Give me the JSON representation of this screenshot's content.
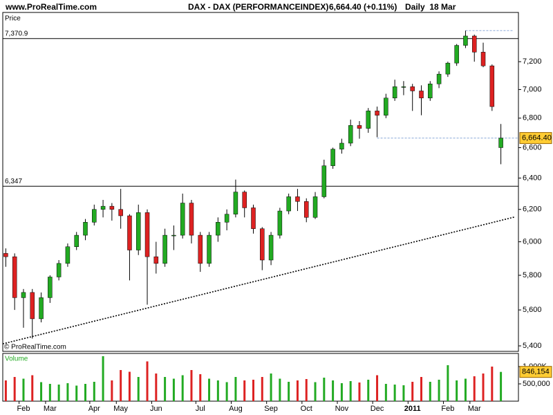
{
  "header": {
    "site": "www.ProRealTime.com",
    "instrument": "DAX - DAX (PERFORMANCEINDEX)",
    "quote": "6,664.40 (+0.11%)",
    "period": "Daily  18 Mar"
  },
  "chart_data": [
    {
      "type": "candlestick",
      "title": "Price",
      "watermark": "© ProRealTime.com",
      "categories": [
        null,
        null,
        "Feb",
        null,
        null,
        "Mar",
        null,
        null,
        null,
        null,
        "Apr",
        null,
        null,
        "May",
        null,
        null,
        null,
        "Jun",
        null,
        null,
        null,
        null,
        "Jul",
        null,
        null,
        null,
        "Aug",
        null,
        null,
        null,
        "Sep",
        null,
        null,
        null,
        "Oct",
        null,
        null,
        null,
        "Nov",
        null,
        null,
        null,
        "Dec",
        null,
        null,
        null,
        "2011",
        null,
        null,
        null,
        "Feb",
        null,
        null,
        "Mar",
        null,
        null,
        null
      ],
      "open": [
        5930,
        5910,
        5670,
        5700,
        5550,
        5670,
        5790,
        5870,
        5970,
        6040,
        6120,
        6200,
        6220,
        6200,
        6160,
        5950,
        6180,
        5910,
        5870,
        6040,
        6040,
        6240,
        6040,
        5870,
        6040,
        6120,
        6170,
        6310,
        6210,
        6080,
        5890,
        6040,
        6190,
        6280,
        6250,
        6150,
        6280,
        6480,
        6590,
        6630,
        6750,
        6730,
        6850,
        6820,
        6940,
        7020,
        7020,
        6990,
        6940,
        7040,
        7110,
        7190,
        7320,
        7390,
        7270,
        7170,
        6600
      ],
      "high": [
        5960,
        5930,
        5720,
        5720,
        5700,
        5800,
        5890,
        5990,
        6060,
        6140,
        6230,
        6260,
        6240,
        6330,
        6170,
        6230,
        6200,
        6000,
        6080,
        6100,
        6300,
        6260,
        6060,
        6060,
        6150,
        6200,
        6390,
        6320,
        6230,
        6090,
        6060,
        6210,
        6300,
        6330,
        6270,
        6310,
        6520,
        6600,
        6660,
        6790,
        6780,
        6870,
        6880,
        6970,
        7070,
        7060,
        7040,
        7030,
        7060,
        7130,
        7200,
        7330,
        7430,
        7400,
        7340,
        7180,
        6760
      ],
      "low": [
        5850,
        5600,
        5500,
        5440,
        5530,
        5640,
        5770,
        5850,
        5950,
        6010,
        6100,
        6150,
        6130,
        6080,
        5770,
        5920,
        5630,
        5810,
        5850,
        5950,
        6020,
        5990,
        5820,
        5850,
        6000,
        6070,
        6150,
        6150,
        6050,
        5830,
        5860,
        6020,
        6170,
        6190,
        6120,
        6140,
        6270,
        6460,
        6560,
        6610,
        6660,
        6700,
        6670,
        6800,
        6920,
        6960,
        6850,
        6820,
        6920,
        7010,
        7090,
        7170,
        7300,
        7200,
        7160,
        6850,
        6490
      ],
      "close": [
        5910,
        5670,
        5700,
        5550,
        5670,
        5790,
        5870,
        5970,
        6040,
        6120,
        6200,
        6220,
        6200,
        6160,
        5950,
        6180,
        5910,
        5870,
        6040,
        6040,
        6240,
        6040,
        5870,
        6040,
        6120,
        6170,
        6310,
        6210,
        6080,
        5890,
        6040,
        6190,
        6280,
        6250,
        6150,
        6280,
        6480,
        6590,
        6630,
        6750,
        6730,
        6850,
        6820,
        6940,
        7020,
        7020,
        6990,
        6940,
        7040,
        7110,
        7190,
        7320,
        7390,
        7270,
        7170,
        6880,
        6664.4
      ],
      "last_close_label": "6,664.40",
      "up_color": "#22aa22",
      "down_color": "#dd2222",
      "ylim": [
        5370,
        7568
      ],
      "log_scale": true,
      "yticks": [
        {
          "value": 5400,
          "label": "5,400"
        },
        {
          "value": 5600,
          "label": "5,600"
        },
        {
          "value": 5800,
          "label": "5,800"
        },
        {
          "value": 6000,
          "label": "6,000"
        },
        {
          "value": 6200,
          "label": "6,200"
        },
        {
          "value": 6400,
          "label": "6,400"
        },
        {
          "value": 6600,
          "label": "6,600"
        },
        {
          "value": 6800,
          "label": "6,800"
        },
        {
          "value": 7000,
          "label": "7,000"
        },
        {
          "value": 7200,
          "label": "7,200"
        }
      ],
      "levels": [
        {
          "value": 7370.9,
          "label": "7,370.9"
        },
        {
          "value": 6347,
          "label": "6,347"
        }
      ],
      "trendline": [
        5411,
        6153
      ]
    },
    {
      "type": "bar",
      "title": "Volume",
      "values": [
        600000,
        700000,
        650000,
        750000,
        550000,
        500000,
        480000,
        520000,
        450000,
        500000,
        560000,
        1300000,
        600000,
        900000,
        850000,
        700000,
        1150000,
        800000,
        700000,
        650000,
        750000,
        900000,
        780000,
        650000,
        600000,
        550000,
        700000,
        600000,
        620000,
        700000,
        800000,
        650000,
        560000,
        600000,
        640000,
        550000,
        680000,
        600000,
        520000,
        580000,
        540000,
        620000,
        750000,
        500000,
        480000,
        460000,
        560000,
        700000,
        560000,
        620000,
        1040000,
        600000,
        650000,
        720000,
        800000,
        1000000,
        846154
      ],
      "last_value_label": "846,154",
      "ylim": [
        0,
        1380000
      ],
      "yticks": [
        {
          "value": 500000,
          "label": "500,000"
        },
        {
          "value": 1000000,
          "label": "1,000K"
        }
      ]
    }
  ]
}
